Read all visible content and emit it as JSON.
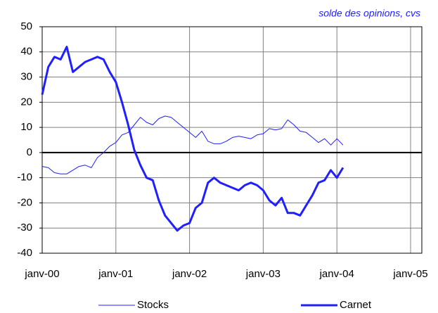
{
  "chart_data": {
    "type": "line",
    "subtitle": "solde des opinions, cvs",
    "categories": [
      "janv-00",
      null,
      null,
      null,
      null,
      null,
      null,
      null,
      null,
      null,
      null,
      null,
      "janv-01",
      null,
      null,
      null,
      null,
      null,
      null,
      null,
      null,
      null,
      null,
      null,
      "janv-02",
      null,
      null,
      null,
      null,
      null,
      null,
      null,
      null,
      null,
      null,
      null,
      "janv-03",
      null,
      null,
      null,
      null,
      null,
      null,
      null,
      null,
      null,
      null,
      null,
      "janv-04",
      null,
      null,
      null,
      null,
      null,
      null,
      null,
      null,
      null,
      null,
      null,
      "janv-05"
    ],
    "series": [
      {
        "name": "Stocks",
        "color": "#1f1fff",
        "width": 1,
        "values": [
          -5.5,
          -6,
          -8,
          -8.5,
          -8.5,
          -7,
          -5.5,
          -5,
          -6,
          -2,
          0,
          2.5,
          4,
          7,
          8,
          11,
          14,
          12,
          11,
          13.5,
          14.5,
          14,
          12,
          10,
          8,
          6,
          8.5,
          4.5,
          3.5,
          3.5,
          4.5,
          6,
          6.5,
          6,
          5.5,
          7,
          7.5,
          9.5,
          9,
          9.5,
          13,
          11,
          8.5,
          8,
          6,
          4,
          5.5,
          3,
          5.5,
          3,
          null,
          null,
          null,
          null,
          null,
          null,
          null,
          null,
          null,
          null,
          null
        ]
      },
      {
        "name": "Carnet",
        "color": "#1f1fff",
        "width": 3,
        "values": [
          23,
          34,
          38,
          37,
          42,
          32,
          34,
          36,
          37,
          38,
          37,
          32,
          28,
          20,
          11,
          1,
          -5,
          -10,
          -11,
          -19,
          -25,
          -28,
          -31,
          -29,
          -28,
          -22,
          -20,
          -12,
          -10,
          -12,
          -13,
          -14,
          -15,
          -13,
          -12,
          -13,
          -15,
          -19,
          -21,
          -18,
          -24,
          -24,
          -25,
          -21,
          -17,
          -12,
          -11,
          -7,
          -10,
          -6,
          null,
          null,
          null,
          null,
          null,
          null,
          null,
          null,
          null,
          null,
          null
        ]
      }
    ],
    "ylim": [
      -40,
      50
    ],
    "yticks": [
      -40,
      -30,
      -20,
      -10,
      0,
      10,
      20,
      30,
      40,
      50
    ],
    "grid": true
  }
}
